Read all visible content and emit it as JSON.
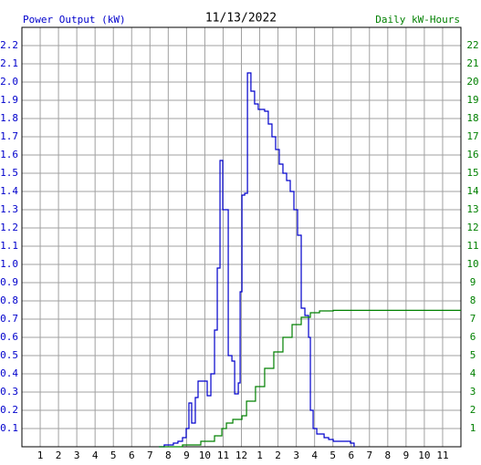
{
  "chart_data": {
    "type": "line",
    "step": true,
    "title": "11/13/2022",
    "y_label": "Power Output (kW)",
    "y2_label": "Daily kW-Hours",
    "grid": true,
    "xlim": [
      0,
      24
    ],
    "xticks": [
      1,
      2,
      3,
      4,
      5,
      6,
      7,
      8,
      9,
      10,
      11,
      12,
      {
        "value": 13,
        "label": "1"
      },
      {
        "value": 14,
        "label": "2"
      },
      {
        "value": 15,
        "label": "3"
      },
      {
        "value": 16,
        "label": "4"
      },
      {
        "value": 17,
        "label": "5"
      },
      {
        "value": 18,
        "label": "6"
      },
      {
        "value": 19,
        "label": "7"
      },
      {
        "value": 20,
        "label": "8"
      },
      {
        "value": 21,
        "label": "9"
      },
      {
        "value": 22,
        "label": "10"
      },
      {
        "value": 23,
        "label": "11"
      }
    ],
    "ylim": [
      0,
      2.3
    ],
    "yticks": [
      0.1,
      0.2,
      0.3,
      0.4,
      0.5,
      0.6,
      0.7,
      0.8,
      0.9,
      {
        "value": 1,
        "label": "1.0"
      },
      1.1,
      1.2,
      1.3,
      1.4,
      1.5,
      1.6,
      1.7,
      1.8,
      1.9,
      {
        "value": 2,
        "label": "2.0"
      },
      2.1,
      2.2
    ],
    "y2lim": [
      0,
      23
    ],
    "y2ticks": [
      1,
      2,
      3,
      4,
      5,
      6,
      7,
      8,
      9,
      10,
      11,
      12,
      13,
      14,
      15,
      16,
      17,
      18,
      19,
      20,
      21,
      22
    ],
    "y_color": "#0000cc",
    "y2_color": "#008000",
    "series": [
      {
        "name": "Power Output (kW)",
        "color": "#0000cc",
        "x": [
          7.49,
          7.78,
          8.28,
          8.53,
          8.78,
          8.98,
          9.13,
          9.28,
          9.48,
          9.63,
          10.03,
          10.13,
          10.33,
          10.53,
          10.68,
          10.83,
          10.98,
          11.18,
          11.28,
          11.48,
          11.63,
          11.83,
          11.93,
          12.03,
          12.18,
          12.33,
          12.52,
          12.72,
          12.92,
          13.27,
          13.47,
          13.67,
          13.87,
          14.07,
          14.27,
          14.47,
          14.67,
          14.87,
          15.07,
          15.27,
          15.47,
          15.67,
          15.77,
          15.92,
          16.12,
          16.52,
          16.77,
          17.02,
          17.96,
          18.16
        ],
        "values": [
          0,
          0.01,
          0.02,
          0.03,
          0.05,
          0.1,
          0.24,
          0.13,
          0.27,
          0.36,
          0.36,
          0.28,
          0.4,
          0.64,
          0.98,
          1.57,
          1.3,
          1.3,
          0.5,
          0.47,
          0.29,
          0.35,
          0.85,
          1.38,
          1.39,
          2.05,
          1.95,
          1.88,
          1.85,
          1.84,
          1.77,
          1.7,
          1.63,
          1.55,
          1.5,
          1.46,
          1.4,
          1.3,
          1.16,
          0.76,
          0.72,
          0.6,
          0.2,
          0.1,
          0.07,
          0.05,
          0.04,
          0.03,
          0.02,
          0
        ]
      },
      {
        "name": "Daily kW-Hours",
        "color": "#008000",
        "axis": "y2",
        "x": [
          7.49,
          8.78,
          9.78,
          10.53,
          10.93,
          11.18,
          11.53,
          12.03,
          12.28,
          12.77,
          13.27,
          13.77,
          14.27,
          14.77,
          15.27,
          15.77,
          16.27,
          17.02,
          24
        ],
        "values": [
          0,
          0.1,
          0.3,
          0.6,
          1.0,
          1.3,
          1.5,
          1.7,
          2.5,
          3.3,
          4.3,
          5.2,
          6.0,
          6.7,
          7.1,
          7.35,
          7.45,
          7.48,
          7.48
        ]
      }
    ]
  }
}
